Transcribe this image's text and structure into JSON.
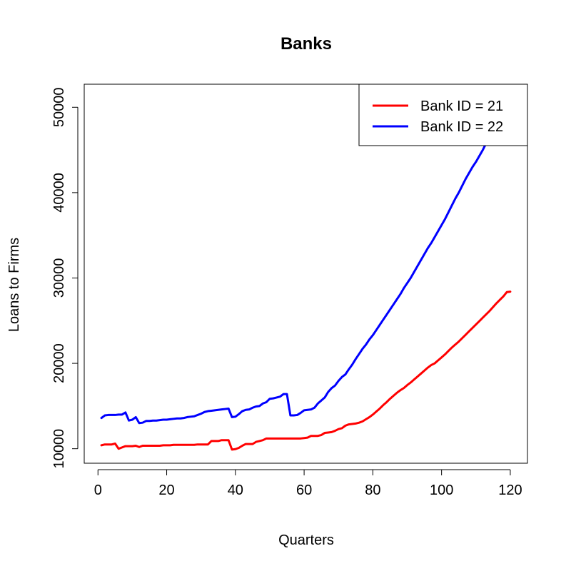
{
  "chart_data": {
    "type": "line",
    "title": "Banks",
    "xlabel": "Quarters",
    "ylabel": "Loans to Firms",
    "xlim": [
      -4,
      125
    ],
    "ylim": [
      8300,
      52700
    ],
    "x_ticks": [
      0,
      20,
      40,
      60,
      80,
      100,
      120
    ],
    "y_ticks": [
      10000,
      20000,
      30000,
      40000,
      50000
    ],
    "legend_position": "top-right",
    "grid": false,
    "series": [
      {
        "name": "Bank ID = 21",
        "color": "#ff0000",
        "x": [
          1,
          2,
          3,
          4,
          5,
          6,
          7,
          8,
          9,
          10,
          11,
          12,
          13,
          14,
          15,
          16,
          17,
          18,
          19,
          20,
          21,
          22,
          23,
          24,
          25,
          26,
          27,
          28,
          29,
          30,
          31,
          32,
          33,
          34,
          35,
          36,
          37,
          38,
          39,
          40,
          41,
          42,
          43,
          44,
          45,
          46,
          47,
          48,
          49,
          50,
          51,
          52,
          53,
          54,
          55,
          56,
          57,
          58,
          59,
          60,
          61,
          62,
          63,
          64,
          65,
          66,
          67,
          68,
          69,
          70,
          71,
          72,
          73,
          74,
          75,
          76,
          77,
          78,
          79,
          80,
          81,
          82,
          83,
          84,
          85,
          86,
          87,
          88,
          89,
          90,
          91,
          92,
          93,
          94,
          95,
          96,
          97,
          98,
          99,
          100,
          101,
          102,
          103,
          104,
          105,
          106,
          107,
          108,
          109,
          110,
          111,
          112,
          113,
          114,
          115,
          116,
          117,
          118,
          119,
          120
        ],
        "values": [
          10400,
          10500,
          10500,
          10500,
          10600,
          10000,
          10150,
          10300,
          10300,
          10300,
          10350,
          10200,
          10350,
          10350,
          10350,
          10350,
          10350,
          10350,
          10400,
          10400,
          10400,
          10450,
          10450,
          10450,
          10450,
          10450,
          10450,
          10450,
          10500,
          10500,
          10500,
          10500,
          10900,
          10900,
          10900,
          11000,
          11000,
          11000,
          9900,
          9950,
          10100,
          10350,
          10550,
          10550,
          10550,
          10800,
          10900,
          11000,
          11200,
          11200,
          11200,
          11200,
          11200,
          11200,
          11200,
          11200,
          11200,
          11200,
          11200,
          11250,
          11300,
          11500,
          11500,
          11500,
          11600,
          11850,
          11900,
          11950,
          12100,
          12300,
          12400,
          12700,
          12850,
          12900,
          12950,
          13050,
          13200,
          13450,
          13700,
          14000,
          14350,
          14700,
          15100,
          15450,
          15850,
          16200,
          16550,
          16850,
          17100,
          17450,
          17750,
          18100,
          18450,
          18800,
          19150,
          19500,
          19800,
          20000,
          20350,
          20700,
          21050,
          21450,
          21850,
          22200,
          22550,
          22950,
          23350,
          23750,
          24150,
          24550,
          24950,
          25350,
          25750,
          26150,
          26600,
          27050,
          27450,
          27850,
          28350,
          28400
        ]
      },
      {
        "name": "Bank ID = 22",
        "color": "#0000ff",
        "x": [
          1,
          2,
          3,
          4,
          5,
          6,
          7,
          8,
          9,
          10,
          11,
          12,
          13,
          14,
          15,
          16,
          17,
          18,
          19,
          20,
          21,
          22,
          23,
          24,
          25,
          26,
          27,
          28,
          29,
          30,
          31,
          32,
          33,
          34,
          35,
          36,
          37,
          38,
          39,
          40,
          41,
          42,
          43,
          44,
          45,
          46,
          47,
          48,
          49,
          50,
          51,
          52,
          53,
          54,
          55,
          56,
          57,
          58,
          59,
          60,
          61,
          62,
          63,
          64,
          65,
          66,
          67,
          68,
          69,
          70,
          71,
          72,
          73,
          74,
          75,
          76,
          77,
          78,
          79,
          80,
          81,
          82,
          83,
          84,
          85,
          86,
          87,
          88,
          89,
          90,
          91,
          92,
          93,
          94,
          95,
          96,
          97,
          98,
          99,
          100,
          101,
          102,
          103,
          104,
          105,
          106,
          107,
          108,
          109,
          110,
          111,
          112,
          113,
          114
        ],
        "values": [
          13600,
          13900,
          13950,
          13950,
          13950,
          14000,
          14000,
          14250,
          13300,
          13400,
          13700,
          13000,
          13050,
          13250,
          13250,
          13300,
          13300,
          13350,
          13400,
          13400,
          13450,
          13500,
          13550,
          13550,
          13600,
          13700,
          13750,
          13800,
          13950,
          14100,
          14300,
          14400,
          14450,
          14500,
          14550,
          14600,
          14650,
          14700,
          13700,
          13750,
          14050,
          14400,
          14550,
          14600,
          14800,
          14950,
          15000,
          15300,
          15450,
          15850,
          15900,
          16000,
          16100,
          16400,
          16400,
          13900,
          13900,
          13950,
          14200,
          14500,
          14550,
          14600,
          14800,
          15300,
          15650,
          16000,
          16650,
          17100,
          17400,
          17950,
          18400,
          18700,
          19300,
          19850,
          20500,
          21100,
          21700,
          22200,
          22800,
          23300,
          23900,
          24500,
          25100,
          25700,
          26300,
          26900,
          27500,
          28100,
          28800,
          29400,
          30000,
          30700,
          31400,
          32100,
          32800,
          33500,
          34100,
          34800,
          35500,
          36200,
          36900,
          37700,
          38500,
          39300,
          40000,
          40800,
          41600,
          42300,
          43000,
          43600,
          44300,
          45000,
          45800,
          46500
        ]
      }
    ]
  }
}
